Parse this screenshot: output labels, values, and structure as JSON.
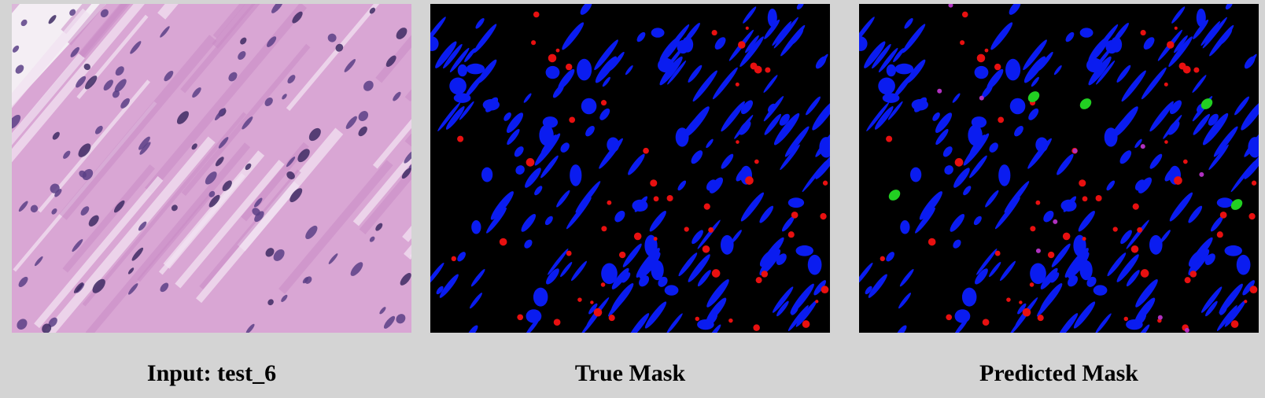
{
  "captions": {
    "input": "Input: test_6",
    "true_mask": "True Mask",
    "predicted_mask": "Predicted Mask"
  },
  "colors": {
    "page_background": "#d4d4d4",
    "tissue_pink": "#d9a6d4",
    "nucleus_purple": "#5b3f86",
    "mask_background": "#000000",
    "class_blue": "#0a1cf0",
    "class_red": "#e81010",
    "class_green": "#22d022"
  }
}
